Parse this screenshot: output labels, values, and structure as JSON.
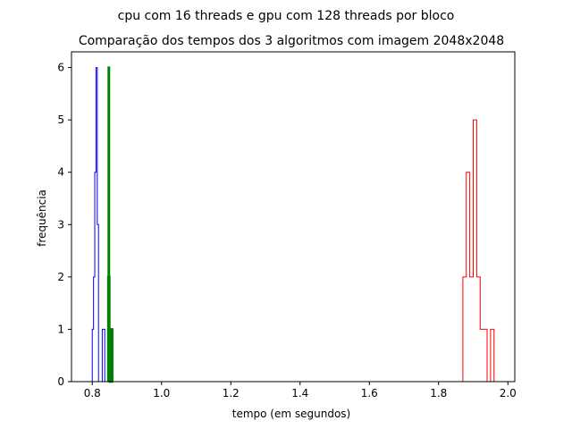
{
  "chart_data": {
    "type": "histogram",
    "suptitle": "cpu com 16 threads e gpu com 128 threads por bloco",
    "title": "Comparação dos tempos dos 3 algoritmos com imagem 2048x2048",
    "xlabel": "tempo (em segundos)",
    "ylabel": "frequência",
    "xlim": [
      0.74,
      2.02
    ],
    "ylim": [
      0,
      6.3
    ],
    "xticks": [
      0.8,
      1.0,
      1.2,
      1.4,
      1.6,
      1.8,
      2.0
    ],
    "xtick_labels": [
      "0.8",
      "1.0",
      "1.2",
      "1.4",
      "1.6",
      "1.8",
      "2.0"
    ],
    "yticks": [
      0,
      1,
      2,
      3,
      4,
      5,
      6
    ],
    "ytick_labels": [
      "0",
      "1",
      "2",
      "3",
      "4",
      "5",
      "6"
    ],
    "grid": false,
    "series": [
      {
        "color": "#0000ff",
        "histtype": "step",
        "stroke_width": 1,
        "edges": [
          0.8,
          0.8036,
          0.8072,
          0.8108,
          0.8144,
          0.818,
          0.8216,
          0.8252,
          0.8288,
          0.8324,
          0.836
        ],
        "counts": [
          1,
          2,
          4,
          6,
          3,
          0,
          0,
          0,
          1,
          1
        ]
      },
      {
        "color": "#008000",
        "histtype": "step",
        "stroke_width": 2.5,
        "edges": [
          0.846,
          0.8472,
          0.8484,
          0.8496,
          0.8508,
          0.852,
          0.8532,
          0.8544,
          0.8556,
          0.8568,
          0.858
        ],
        "counts": [
          2,
          6,
          2,
          1,
          0,
          0,
          0,
          0,
          0,
          1
        ]
      },
      {
        "color": "#ff0000",
        "histtype": "step",
        "stroke_width": 1,
        "edges": [
          1.87,
          1.88,
          1.89,
          1.9,
          1.91,
          1.92,
          1.93,
          1.94,
          1.95,
          1.96
        ],
        "counts": [
          2,
          4,
          2,
          5,
          2,
          1,
          1,
          0,
          1
        ]
      }
    ]
  }
}
